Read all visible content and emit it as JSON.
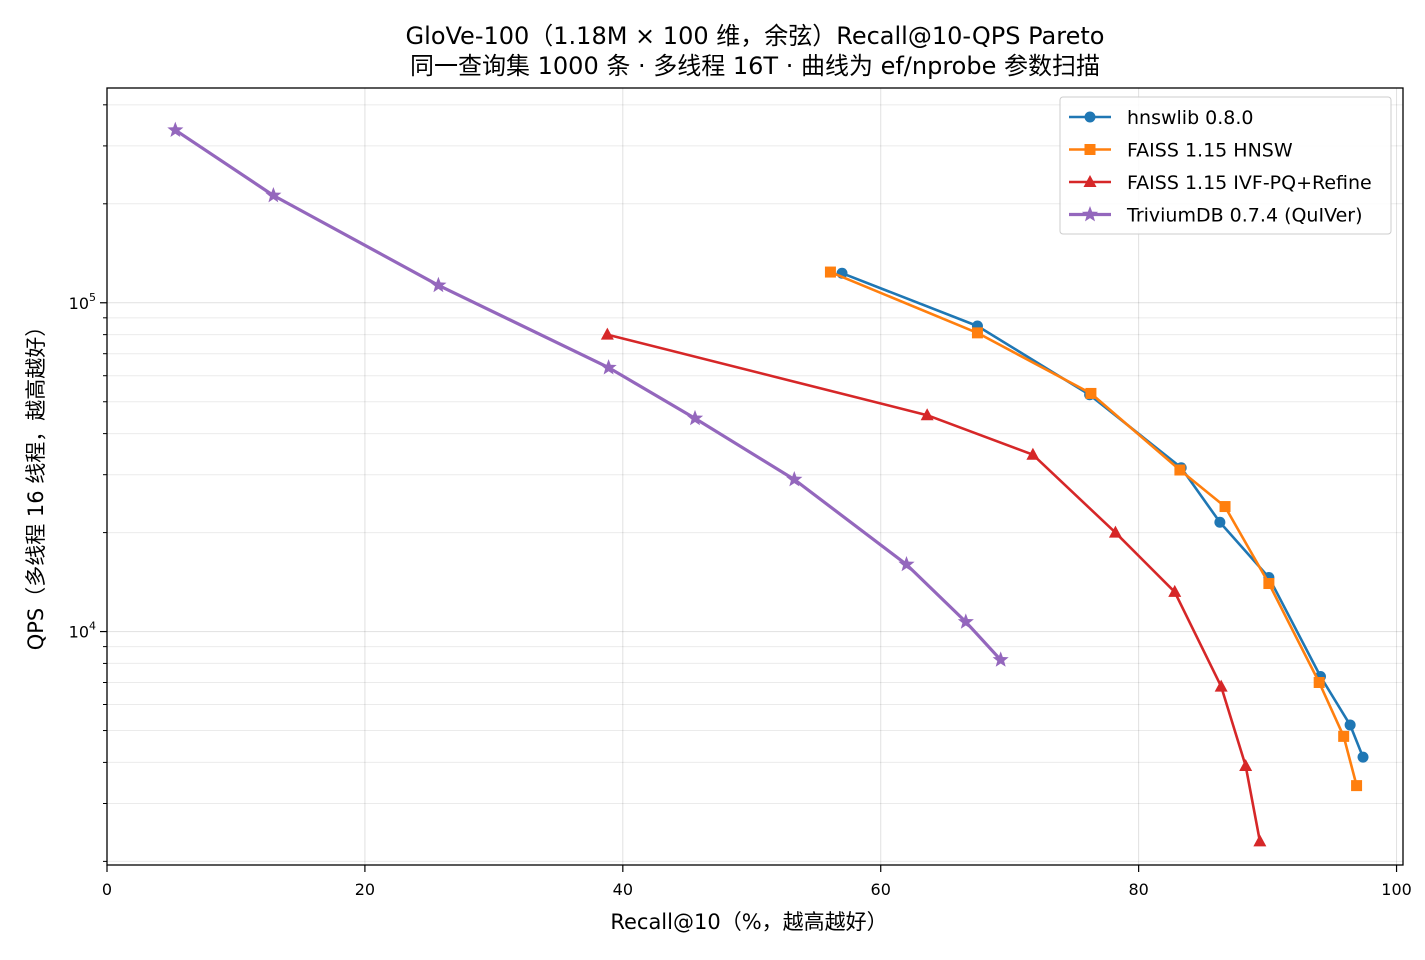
{
  "chart_data": {
    "type": "line",
    "title": "GloVe-100（1.18M × 100 维，余弦）Recall@10-QPS Pareto",
    "subtitle": "同一查询集 1000 条 · 多线程 16T · 曲线为 ef/nprobe 参数扫描",
    "xlabel": "Recall@10（%，越高越好）",
    "ylabel": "QPS（多线程 16 线程，越高越好）",
    "xlim": [
      0,
      100.5
    ],
    "ylim": [
      1950,
      450000
    ],
    "x_scale": "linear",
    "y_scale": "log",
    "grid": true,
    "legend_position": "top-right",
    "x_ticks": [
      0,
      20,
      40,
      60,
      80,
      100
    ],
    "y_ticks": [
      {
        "value": 100000,
        "base": "10",
        "exp": "5"
      },
      {
        "value": 10000,
        "base": "10",
        "exp": "4"
      }
    ],
    "series": [
      {
        "name": "hnswlib 0.8.0",
        "color": "#1f77b4",
        "marker": "circle",
        "x": [
          57.0,
          67.5,
          76.2,
          83.3,
          86.3,
          90.1,
          94.1,
          96.4,
          97.4
        ],
        "y": [
          123000,
          85000,
          52500,
          31500,
          21500,
          14600,
          7300,
          5200,
          4150
        ]
      },
      {
        "name": "FAISS 1.15 HNSW",
        "color": "#ff7f0e",
        "marker": "square",
        "x": [
          56.1,
          67.5,
          76.3,
          83.2,
          86.7,
          90.1,
          94.0,
          95.9,
          96.9
        ],
        "y": [
          124000,
          81000,
          53000,
          31000,
          24000,
          14000,
          7000,
          4800,
          3400
        ]
      },
      {
        "name": "FAISS 1.15 IVF-PQ+Refine",
        "color": "#d62728",
        "marker": "triangle",
        "x": [
          38.8,
          63.6,
          71.8,
          78.2,
          82.8,
          86.4,
          88.3,
          89.4
        ],
        "y": [
          80000,
          45500,
          34500,
          20000,
          13200,
          6800,
          3900,
          2300
        ]
      },
      {
        "name": "TriviumDB 0.7.4 (QuIVer)",
        "color": "#9467bd",
        "marker": "star",
        "x": [
          5.3,
          12.9,
          25.7,
          38.9,
          45.6,
          53.3,
          62.0,
          66.6,
          69.3
        ],
        "y": [
          335000,
          212000,
          113000,
          63500,
          44500,
          29000,
          16000,
          10700,
          8200
        ]
      }
    ]
  }
}
